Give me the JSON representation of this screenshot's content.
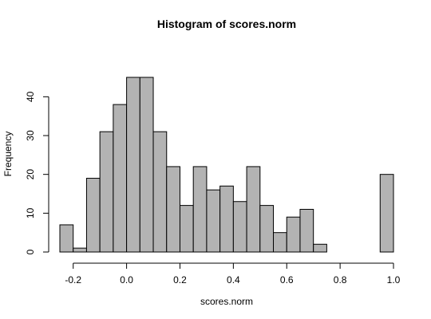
{
  "chart_data": {
    "type": "bar",
    "title": "Histogram of scores.norm",
    "xlabel": "scores.norm",
    "ylabel": "Frequency",
    "bin_width": 0.05,
    "bin_starts": [
      -0.25,
      -0.2,
      -0.15,
      -0.1,
      -0.05,
      0.0,
      0.05,
      0.1,
      0.15,
      0.2,
      0.25,
      0.3,
      0.35,
      0.4,
      0.45,
      0.5,
      0.55,
      0.6,
      0.65,
      0.7,
      0.75,
      0.8,
      0.85,
      0.9,
      0.95
    ],
    "values": [
      7,
      1,
      19,
      31,
      38,
      45,
      45,
      31,
      22,
      12,
      22,
      16,
      17,
      13,
      22,
      12,
      5,
      9,
      11,
      2,
      0,
      0,
      0,
      0,
      20
    ],
    "xlim": [
      -0.25,
      1.0
    ],
    "ylim": [
      0,
      45
    ],
    "x_ticks": [
      -0.2,
      0.0,
      0.2,
      0.4,
      0.6,
      0.8,
      1.0
    ],
    "x_tick_labels": [
      "-0.2",
      "0.0",
      "0.2",
      "0.4",
      "0.6",
      "0.8",
      "1.0"
    ],
    "y_ticks": [
      0,
      10,
      20,
      30,
      40
    ],
    "y_tick_labels": [
      "0",
      "10",
      "20",
      "30",
      "40"
    ],
    "bar_color": "#b3b3b3",
    "grid": false,
    "legend": "none"
  }
}
